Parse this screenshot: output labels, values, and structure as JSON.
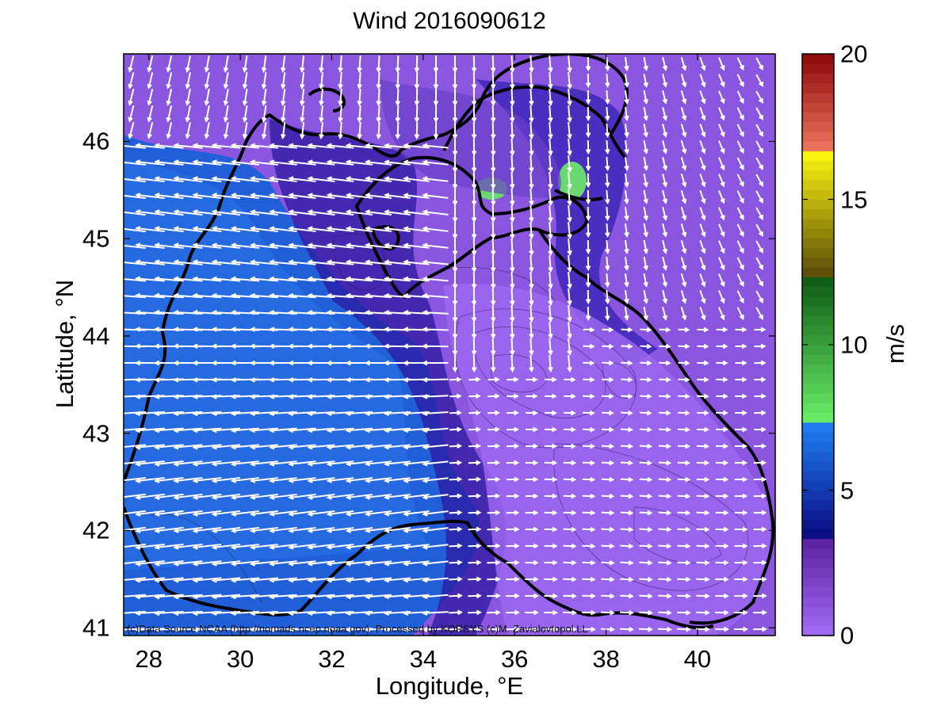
{
  "title": "Wind 2016090612",
  "xlabel": "Longitude, °E",
  "ylabel": "Latitude, °N",
  "colorbar": {
    "label": "m/s",
    "range": [
      0,
      20
    ],
    "ticks": [
      {
        "label": "0",
        "value": 0
      },
      {
        "label": "5",
        "value": 5
      },
      {
        "label": "10",
        "value": 10
      },
      {
        "label": "15",
        "value": 15
      },
      {
        "label": "20",
        "value": 20
      }
    ],
    "color_stops": [
      {
        "value": 0,
        "color": "#a46cf6"
      },
      {
        "value": 3.3,
        "color": "#5a21a0"
      },
      {
        "value": 3.4,
        "color": "#0a0a80"
      },
      {
        "value": 7.2,
        "color": "#1e7cf2"
      },
      {
        "value": 7.3,
        "color": "#6cf06a"
      },
      {
        "value": 12.3,
        "color": "#0e5a14"
      },
      {
        "value": 12.4,
        "color": "#5a4a08"
      },
      {
        "value": 16.5,
        "color": "#f8f20e"
      },
      {
        "value": 16.6,
        "color": "#f07860"
      },
      {
        "value": 20,
        "color": "#8a0808"
      }
    ]
  },
  "axes": {
    "lon_range": [
      27.45,
      41.7
    ],
    "lat_range": [
      40.92,
      46.9
    ],
    "x_ticks": [
      {
        "label": "28",
        "value": 28
      },
      {
        "label": "30",
        "value": 30
      },
      {
        "label": "32",
        "value": 32
      },
      {
        "label": "34",
        "value": 34
      },
      {
        "label": "36",
        "value": 36
      },
      {
        "label": "38",
        "value": 38
      },
      {
        "label": "40",
        "value": 40
      }
    ],
    "y_ticks": [
      {
        "label": "41",
        "value": 41
      },
      {
        "label": "42",
        "value": 42
      },
      {
        "label": "43",
        "value": 43
      },
      {
        "label": "44",
        "value": 44
      },
      {
        "label": "45",
        "value": 45
      },
      {
        "label": "46",
        "value": 46
      }
    ]
  },
  "credit": "(c)Data Source NCAA (http://nomads.ncep.noaa.gov). Processed by KORSYS (c)M. Zavialovtopol.LL",
  "map_colors": {
    "weak_wind": "#8a56e0",
    "moderate_wind": "#3a2ab8",
    "strong_wind": "#1860d8",
    "coastline": "#000000",
    "arrows": "#ffffff"
  }
}
